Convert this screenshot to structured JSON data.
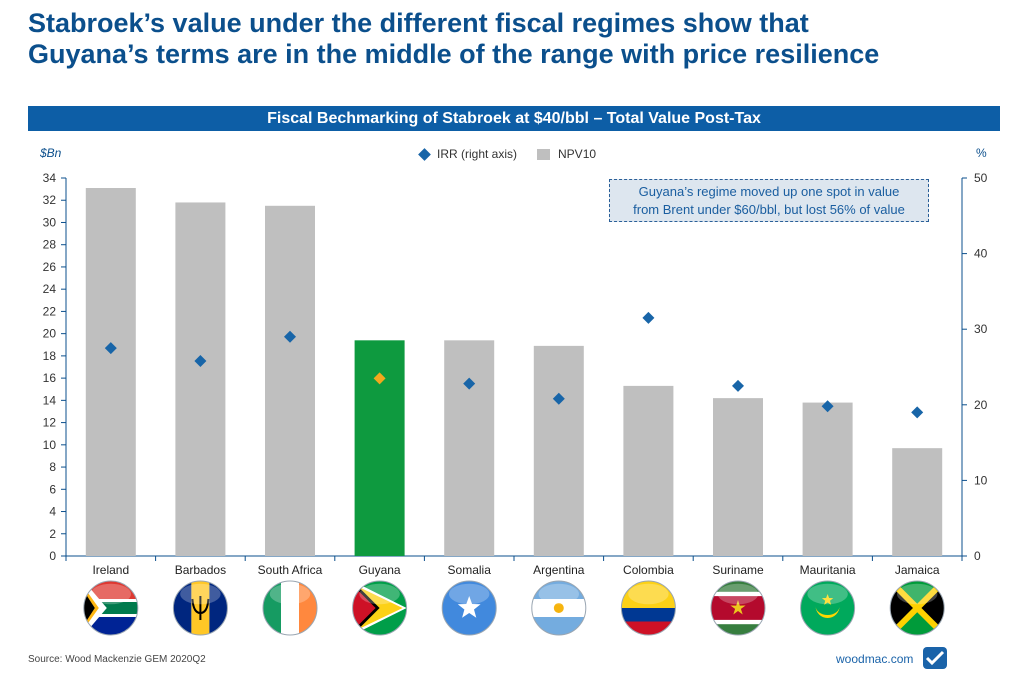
{
  "headline": {
    "line1": "Stabroek’s value under the different fiscal regimes show that",
    "line2": "Guyana’s terms are in the middle of the range with price resilience"
  },
  "chart_data": {
    "type": "bar",
    "title": "Fiscal Bechmarking of Stabroek at $40/bbl – Total Value Post-Tax",
    "left_axis_unit": "$Bn",
    "right_axis_unit": "%",
    "categories": [
      "Ireland",
      "Barbados",
      "South Africa",
      "Guyana",
      "Somalia",
      "Argentina",
      "Colombia",
      "Suriname",
      "Mauritania",
      "Jamaica"
    ],
    "series": [
      {
        "name": "NPV10",
        "kind": "bar",
        "axis": "left",
        "values": [
          33.1,
          31.8,
          31.5,
          19.4,
          19.4,
          18.9,
          15.3,
          14.2,
          13.8,
          9.7
        ]
      },
      {
        "name": "IRR (right axis)",
        "kind": "marker",
        "axis": "right",
        "values": [
          27.5,
          25.8,
          29.0,
          23.5,
          22.8,
          20.8,
          31.5,
          22.5,
          19.8,
          19.0
        ]
      }
    ],
    "highlight_category": "Guyana",
    "y_left": {
      "min": 0,
      "max": 34,
      "ticks": [
        0,
        2,
        4,
        6,
        8,
        10,
        12,
        14,
        16,
        18,
        20,
        22,
        24,
        26,
        28,
        30,
        32,
        34
      ]
    },
    "y_right": {
      "min": 0,
      "max": 50,
      "ticks": [
        0,
        10,
        20,
        30,
        40,
        50
      ]
    },
    "legend_position": "top-center",
    "annotation": {
      "line1": "Guyana’s regime moved up one spot in value",
      "line2": "from Brent under $60/bbl, but lost 56% of value"
    },
    "colors": {
      "bar": "#bfbfbf",
      "highlight_bar": "#0e9a3f",
      "marker": "#1865a8",
      "highlight_marker": "#f2a81d",
      "axis": "#0b4f8c"
    },
    "flags": [
      "south-africa-flag",
      "barbados-flag",
      "ireland-flag",
      "guyana-flag",
      "somalia-flag",
      "argentina-flag",
      "colombia-flag",
      "suriname-flag",
      "mauritania-flag",
      "jamaica-flag"
    ]
  },
  "footer": {
    "source": "Source: Wood Mackenzie GEM 2020Q2",
    "brand": "woodmac.com",
    "brand_icon": "woodmac-logo-icon"
  }
}
